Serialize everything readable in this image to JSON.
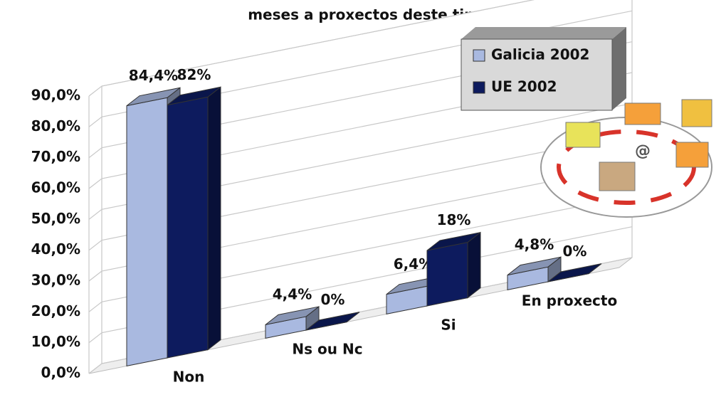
{
  "chart_data": {
    "type": "bar3d",
    "title": "meses a proxectos deste tipo?",
    "categories": [
      "Non",
      "Ns ou Nc",
      "Si",
      "En proxecto"
    ],
    "series": [
      {
        "name": "Galicia 2002",
        "color": "#a9b9e0",
        "values": [
          84.4,
          4.4,
          6.4,
          4.8
        ],
        "value_labels": [
          "84,4%",
          "4,4%",
          "6,4%",
          "4,8%"
        ]
      },
      {
        "name": "UE 2002",
        "color": "#0d1b5e",
        "values": [
          82,
          0,
          18,
          0
        ],
        "value_labels": [
          "82%",
          "0%",
          "18%",
          "0%"
        ]
      }
    ],
    "ylim": [
      0,
      90
    ],
    "yticks": [
      {
        "value": 0,
        "label": "0,0%"
      },
      {
        "value": 10,
        "label": "10,0%"
      },
      {
        "value": 20,
        "label": "20,0%"
      },
      {
        "value": 30,
        "label": "30,0%"
      },
      {
        "value": 40,
        "label": "40,0%"
      },
      {
        "value": 50,
        "label": "50,0%"
      },
      {
        "value": 60,
        "label": "60,0%"
      },
      {
        "value": 70,
        "label": "70,0%"
      },
      {
        "value": 80,
        "label": "80,0%"
      },
      {
        "value": 90,
        "label": "90,0%"
      }
    ],
    "grid": true
  }
}
